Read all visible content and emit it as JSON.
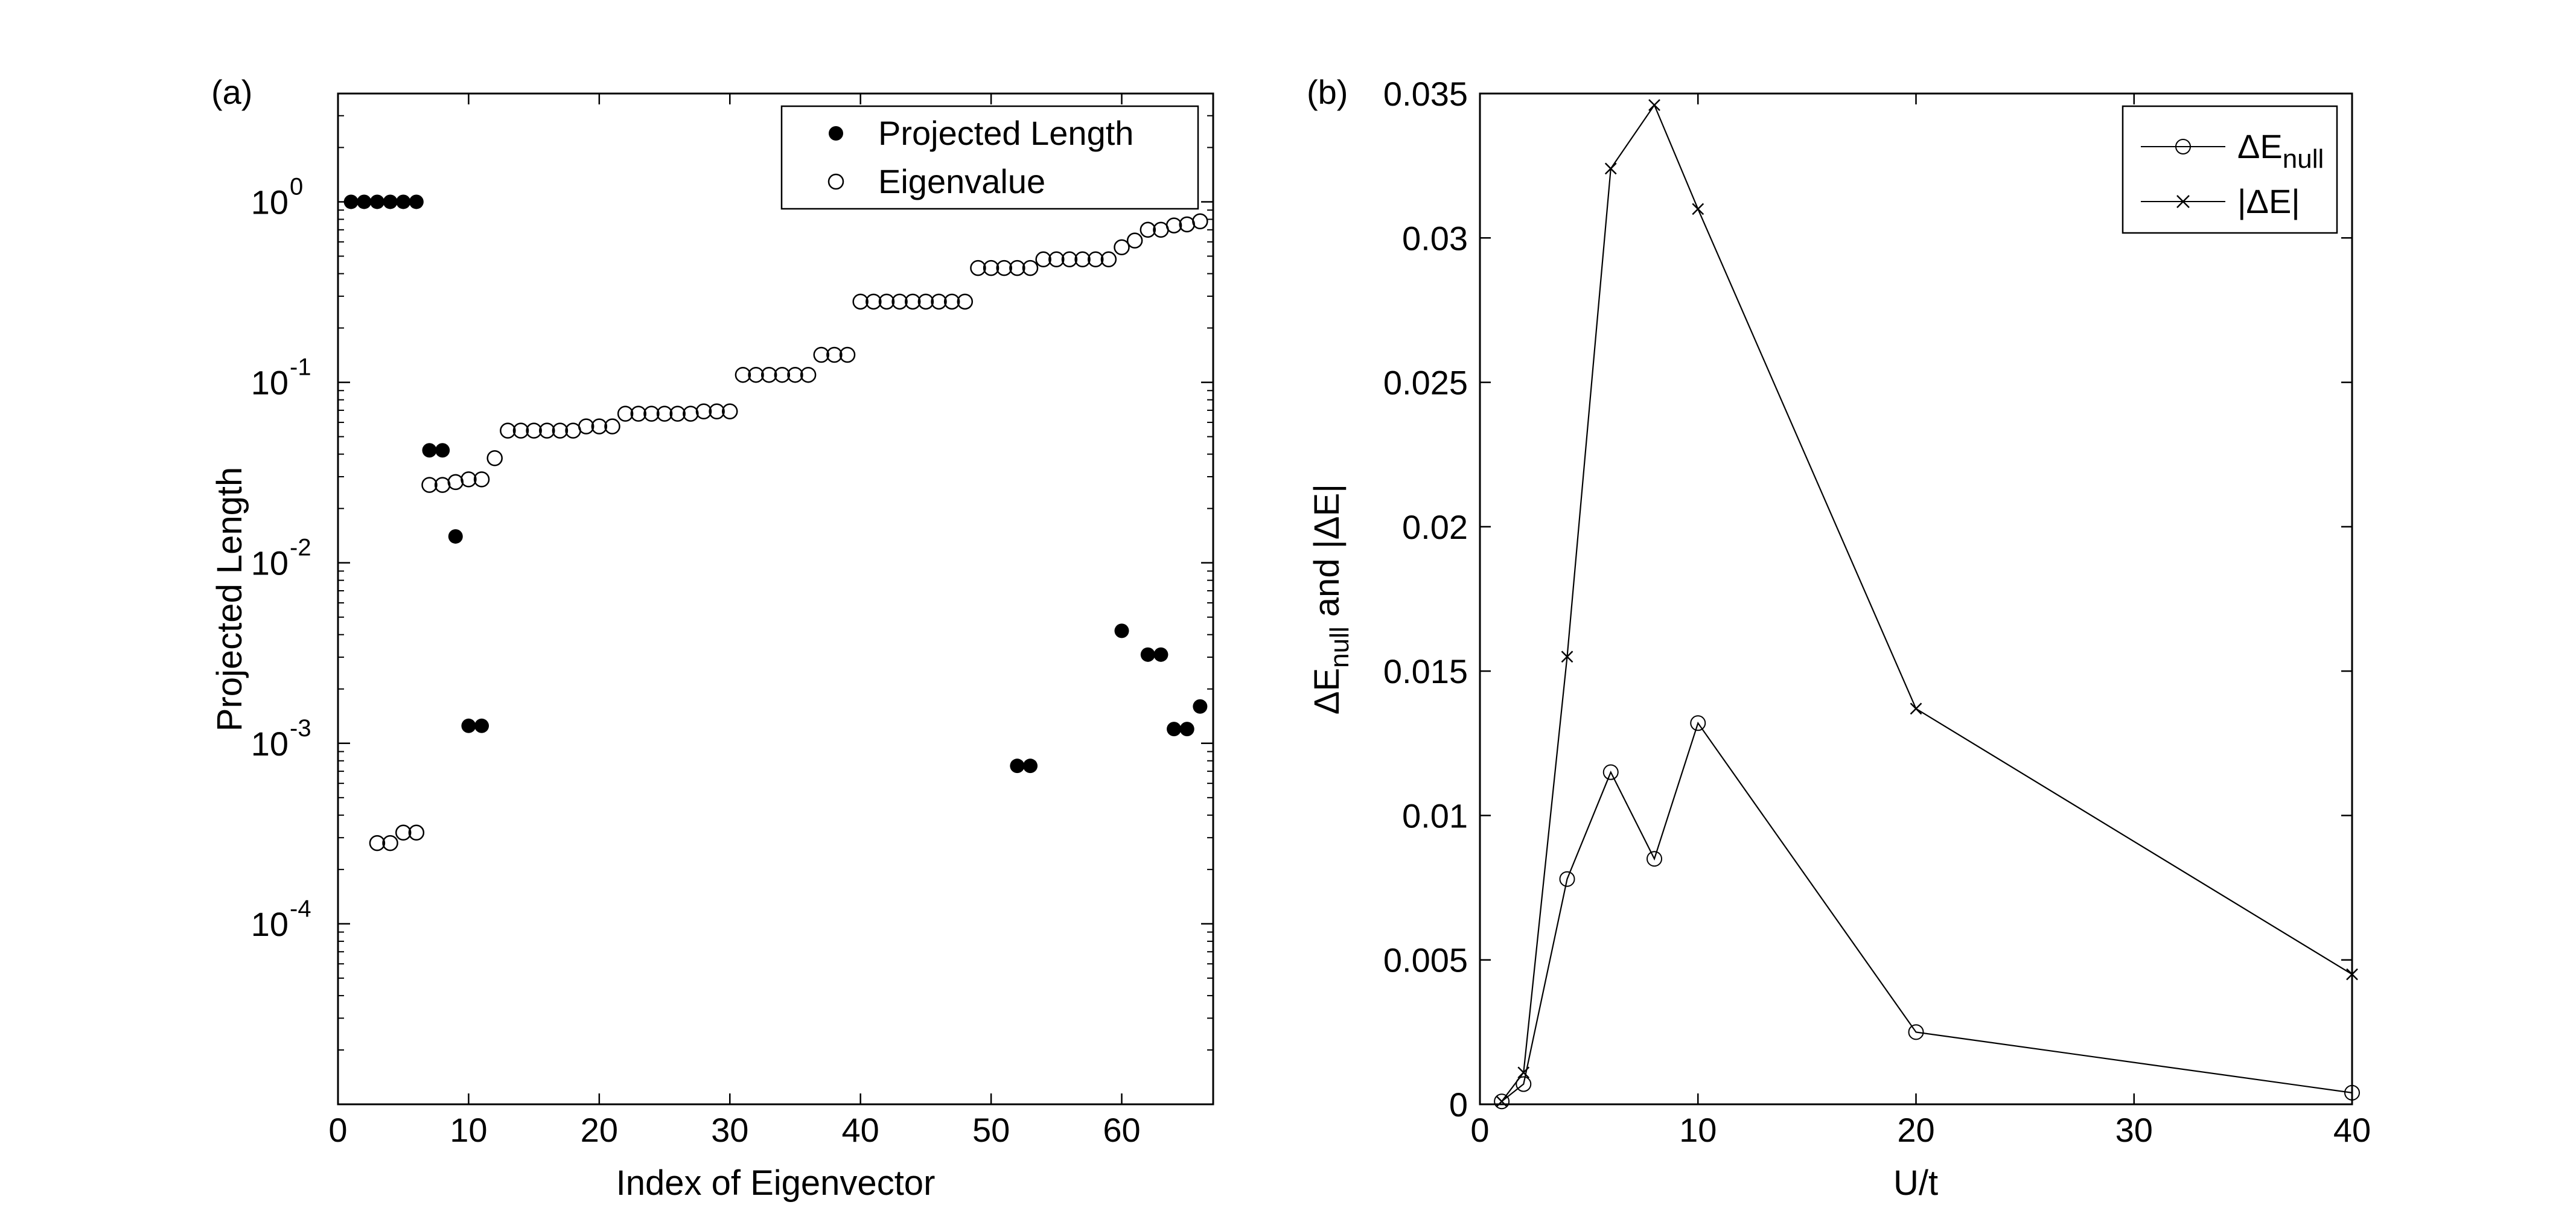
{
  "colors": {
    "axis": "#000000",
    "marker": "#000000",
    "background": "#ffffff"
  },
  "chart_data": [
    {
      "type": "scatter",
      "panel_label": "(a)",
      "xlabel": "Index of Eigenvector",
      "ylabel": "Projected Length",
      "xlim": [
        0,
        67
      ],
      "ylim_log10": [
        -5,
        0.6
      ],
      "yscale": "log",
      "xticks": [
        0,
        10,
        20,
        30,
        40,
        50,
        60
      ],
      "yticks": [
        {
          "exp": 0,
          "base": "10",
          "power": "0"
        },
        {
          "exp": -1,
          "base": "10",
          "power": "-1"
        },
        {
          "exp": -2,
          "base": "10",
          "power": "-2"
        },
        {
          "exp": -3,
          "base": "10",
          "power": "-3"
        },
        {
          "exp": -4,
          "base": "10",
          "power": "-4"
        }
      ],
      "legend_position": "top-right",
      "series": [
        {
          "name": "Projected Length",
          "marker": "filled-circle",
          "points": [
            [
              1,
              1
            ],
            [
              2,
              1
            ],
            [
              3,
              1
            ],
            [
              4,
              1
            ],
            [
              5,
              1
            ],
            [
              6,
              1
            ],
            [
              7,
              0.042
            ],
            [
              8,
              0.042
            ],
            [
              9,
              0.014
            ],
            [
              10,
              0.00125
            ],
            [
              11,
              0.00125
            ],
            [
              52,
              0.00075
            ],
            [
              53,
              0.00075
            ],
            [
              60,
              0.0042
            ],
            [
              62,
              0.0031
            ],
            [
              63,
              0.0031
            ],
            [
              64,
              0.0012
            ],
            [
              65,
              0.0012
            ],
            [
              66,
              0.0016
            ]
          ]
        },
        {
          "name": "Eigenvalue",
          "marker": "open-circle",
          "points": [
            [
              3,
              0.00028
            ],
            [
              4,
              0.00028
            ],
            [
              5,
              0.00032
            ],
            [
              6,
              0.00032
            ],
            [
              7,
              0.027
            ],
            [
              8,
              0.027
            ],
            [
              9,
              0.028
            ],
            [
              10,
              0.029
            ],
            [
              11,
              0.029
            ],
            [
              12,
              0.038
            ],
            [
              13,
              0.054
            ],
            [
              14,
              0.054
            ],
            [
              15,
              0.054
            ],
            [
              16,
              0.054
            ],
            [
              17,
              0.054
            ],
            [
              18,
              0.054
            ],
            [
              19,
              0.057
            ],
            [
              20,
              0.057
            ],
            [
              21,
              0.057
            ],
            [
              22,
              0.067
            ],
            [
              23,
              0.067
            ],
            [
              24,
              0.067
            ],
            [
              25,
              0.067
            ],
            [
              26,
              0.067
            ],
            [
              27,
              0.067
            ],
            [
              28,
              0.069
            ],
            [
              29,
              0.069
            ],
            [
              30,
              0.069
            ],
            [
              31,
              0.11
            ],
            [
              32,
              0.11
            ],
            [
              33,
              0.11
            ],
            [
              34,
              0.11
            ],
            [
              35,
              0.11
            ],
            [
              36,
              0.11
            ],
            [
              37,
              0.142
            ],
            [
              38,
              0.142
            ],
            [
              39,
              0.142
            ],
            [
              40,
              0.28
            ],
            [
              41,
              0.28
            ],
            [
              42,
              0.28
            ],
            [
              43,
              0.28
            ],
            [
              44,
              0.28
            ],
            [
              45,
              0.28
            ],
            [
              46,
              0.28
            ],
            [
              47,
              0.28
            ],
            [
              48,
              0.28
            ],
            [
              49,
              0.43
            ],
            [
              50,
              0.43
            ],
            [
              51,
              0.43
            ],
            [
              52,
              0.43
            ],
            [
              53,
              0.43
            ],
            [
              54,
              0.48
            ],
            [
              55,
              0.48
            ],
            [
              56,
              0.48
            ],
            [
              57,
              0.48
            ],
            [
              58,
              0.48
            ],
            [
              59,
              0.48
            ],
            [
              60,
              0.56
            ],
            [
              61,
              0.61
            ],
            [
              62,
              0.7
            ],
            [
              63,
              0.7
            ],
            [
              64,
              0.74
            ],
            [
              65,
              0.75
            ],
            [
              66,
              0.78
            ]
          ]
        }
      ]
    },
    {
      "type": "line",
      "panel_label": "(b)",
      "xlabel": "U/t",
      "ylabel": {
        "p1": "ΔE",
        "sub": "null",
        "p2": " and |ΔE|"
      },
      "xlim": [
        0,
        40
      ],
      "ylim": [
        0,
        0.035
      ],
      "xticks": [
        0,
        10,
        20,
        30,
        40
      ],
      "yticks": [
        0,
        0.005,
        0.01,
        0.015,
        0.02,
        0.025,
        0.03,
        0.035
      ],
      "ytick_labels": [
        "0",
        "0.005",
        "0.01",
        "0.015",
        "0.02",
        "0.025",
        "0.03",
        "0.035"
      ],
      "legend_position": "top-right",
      "series": [
        {
          "name": {
            "main": "ΔE",
            "sub": "null"
          },
          "marker": "open-circle",
          "x": [
            1,
            2,
            4,
            6,
            8,
            10,
            20,
            40
          ],
          "y": [
            0.0001,
            0.0007,
            0.0078,
            0.0115,
            0.0085,
            0.0132,
            0.0025,
            0.0004
          ]
        },
        {
          "name": {
            "main": "|ΔE|",
            "sub": ""
          },
          "marker": "x",
          "x": [
            1,
            2,
            4,
            6,
            8,
            10,
            20,
            40
          ],
          "y": [
            0.0001,
            0.0011,
            0.0155,
            0.0324,
            0.0346,
            0.031,
            0.0137,
            0.0045
          ]
        }
      ]
    }
  ]
}
